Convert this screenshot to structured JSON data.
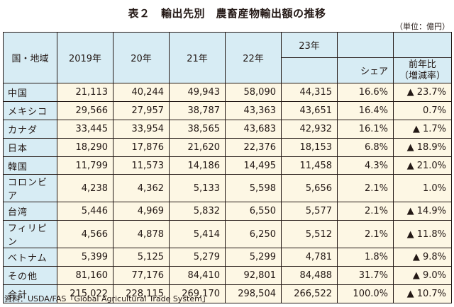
{
  "title": "表２　輸出先別　農畜産物輸出額の推移",
  "unit": "（単位：億円）",
  "header": {
    "region": "国・地域",
    "years": [
      "2019年",
      "20年",
      "21年",
      "22年",
      "23年"
    ],
    "share": "シェア",
    "yoy_line1": "前年比",
    "yoy_line2": "（増減率）"
  },
  "rows": [
    {
      "region": "中国",
      "values": [
        "21,113",
        "40,244",
        "49,943",
        "58,090",
        "44,315"
      ],
      "share": "16.6%",
      "yoy": "▲ 23.7%"
    },
    {
      "region": "メキシコ",
      "values": [
        "29,566",
        "27,957",
        "38,787",
        "43,363",
        "43,651"
      ],
      "share": "16.4%",
      "yoy": "0.7%"
    },
    {
      "region": "カナダ",
      "values": [
        "33,445",
        "33,954",
        "38,565",
        "43,683",
        "42,932"
      ],
      "share": "16.1%",
      "yoy": "▲ 1.7%"
    },
    {
      "region": "日本",
      "values": [
        "18,290",
        "17,876",
        "21,620",
        "22,376",
        "18,153"
      ],
      "share": "6.8%",
      "yoy": "▲ 18.9%"
    },
    {
      "region": "韓国",
      "values": [
        "11,799",
        "11,573",
        "14,186",
        "14,495",
        "11,458"
      ],
      "share": "4.3%",
      "yoy": "▲ 21.0%"
    },
    {
      "region": "コロンビア",
      "values": [
        "4,238",
        "4,362",
        "5,133",
        "5,598",
        "5,656"
      ],
      "share": "2.1%",
      "yoy": "1.0%"
    },
    {
      "region": "台湾",
      "values": [
        "5,446",
        "4,969",
        "5,832",
        "6,550",
        "5,577"
      ],
      "share": "2.1%",
      "yoy": "▲ 14.9%"
    },
    {
      "region": "フィリピン",
      "values": [
        "4,566",
        "4,878",
        "5,414",
        "6,250",
        "5,512"
      ],
      "share": "2.1%",
      "yoy": "▲ 11.8%"
    },
    {
      "region": "ベトナム",
      "values": [
        "5,399",
        "5,125",
        "5,279",
        "5,299",
        "4,781"
      ],
      "share": "1.8%",
      "yoy": "▲ 9.8%"
    },
    {
      "region": "その他",
      "values": [
        "81,160",
        "77,176",
        "84,410",
        "92,801",
        "84,488"
      ],
      "share": "31.7%",
      "yoy": "▲ 9.0%"
    },
    {
      "region": "合計",
      "values": [
        "215,022",
        "228,115",
        "269,170",
        "298,504",
        "266,522"
      ],
      "share": "100.0%",
      "yoy": "▲ 10.7%"
    }
  ],
  "footer": "資料：USDA/FAS「Global Agricultural Trade System」",
  "colors": {
    "header_bg": "#d7ecf4",
    "cell_bg": "#fdf7e4",
    "border": "#231815"
  }
}
